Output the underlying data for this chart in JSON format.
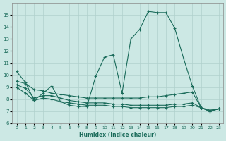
{
  "background_color": "#cce8e4",
  "grid_color": "#b0d0cc",
  "line_color": "#1a6b5a",
  "xlabel": "Humidex (Indice chaleur)",
  "ylim": [
    6,
    16
  ],
  "xlim": [
    -0.5,
    23.5
  ],
  "yticks": [
    6,
    7,
    8,
    9,
    10,
    11,
    12,
    13,
    14,
    15
  ],
  "xticks": [
    0,
    1,
    2,
    3,
    4,
    5,
    6,
    7,
    8,
    9,
    10,
    11,
    12,
    13,
    14,
    15,
    16,
    17,
    18,
    19,
    20,
    21,
    22,
    23
  ],
  "series": [
    {
      "x": [
        0,
        1,
        2,
        3,
        4,
        5,
        6,
        7,
        8,
        9,
        10,
        11,
        12,
        13,
        14,
        15,
        16,
        17,
        18,
        19,
        20,
        21,
        22,
        23
      ],
      "y": [
        10.3,
        9.4,
        7.9,
        8.5,
        9.1,
        7.8,
        7.5,
        7.4,
        7.4,
        9.9,
        11.5,
        11.7,
        8.5,
        13.0,
        13.8,
        15.3,
        15.2,
        15.2,
        13.9,
        11.4,
        9.1,
        7.3,
        7.0,
        7.2
      ]
    },
    {
      "x": [
        0,
        1,
        2,
        3,
        4,
        5,
        6,
        7,
        8,
        9,
        10,
        11,
        12,
        13,
        14,
        15,
        16,
        17,
        18,
        19,
        20,
        21,
        22,
        23
      ],
      "y": [
        9.5,
        9.3,
        8.8,
        8.7,
        8.5,
        8.4,
        8.3,
        8.2,
        8.1,
        8.1,
        8.1,
        8.1,
        8.1,
        8.1,
        8.1,
        8.2,
        8.2,
        8.3,
        8.4,
        8.5,
        8.6,
        7.3,
        7.1,
        7.2
      ]
    },
    {
      "x": [
        0,
        1,
        2,
        3,
        4,
        5,
        6,
        7,
        8,
        9,
        10,
        11,
        12,
        13,
        14,
        15,
        16,
        17,
        18,
        19,
        20,
        21,
        22,
        23
      ],
      "y": [
        9.0,
        8.5,
        7.9,
        8.1,
        8.0,
        7.8,
        7.7,
        7.6,
        7.5,
        7.5,
        7.5,
        7.4,
        7.4,
        7.3,
        7.3,
        7.3,
        7.3,
        7.3,
        7.4,
        7.4,
        7.5,
        7.3,
        7.0,
        7.2
      ]
    },
    {
      "x": [
        0,
        1,
        2,
        3,
        4,
        5,
        6,
        7,
        8,
        9,
        10,
        11,
        12,
        13,
        14,
        15,
        16,
        17,
        18,
        19,
        20,
        21,
        22,
        23
      ],
      "y": [
        9.2,
        8.9,
        8.1,
        8.3,
        8.3,
        8.1,
        7.9,
        7.8,
        7.7,
        7.7,
        7.7,
        7.6,
        7.6,
        7.5,
        7.5,
        7.5,
        7.5,
        7.5,
        7.6,
        7.6,
        7.7,
        7.3,
        7.0,
        7.2
      ]
    }
  ]
}
